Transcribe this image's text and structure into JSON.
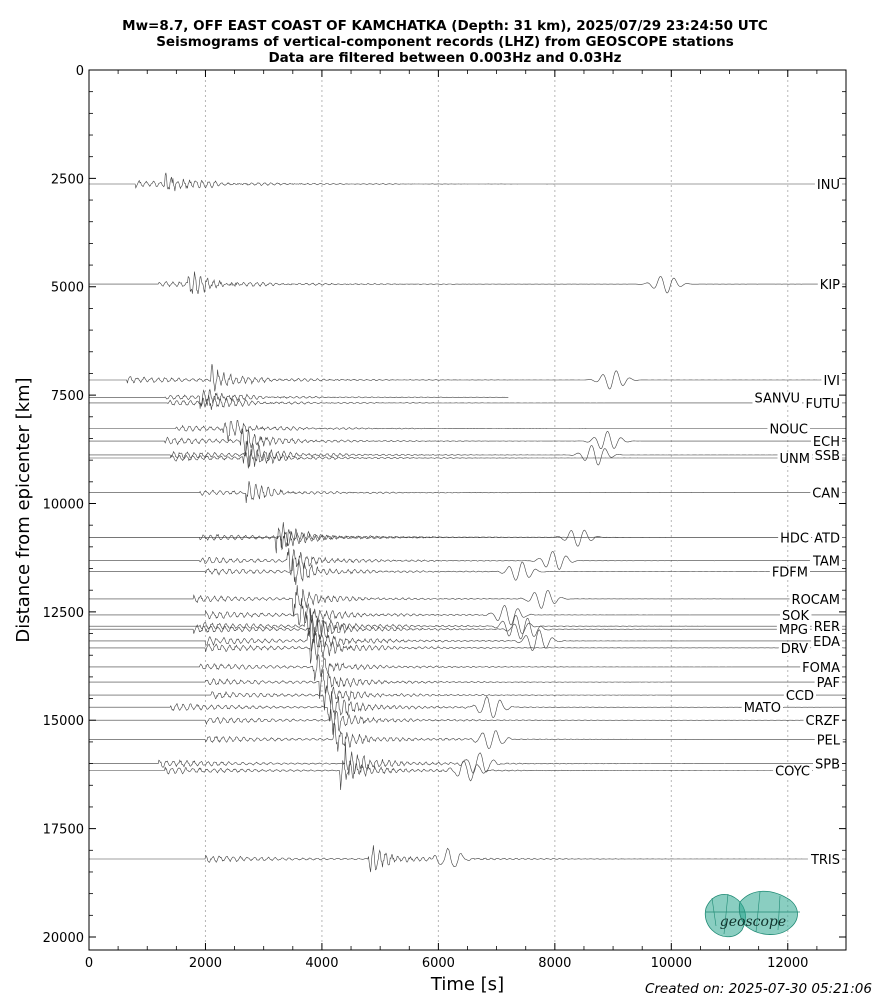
{
  "titles": {
    "line1": "Mw=8.7, OFF EAST COAST OF KAMCHATKA (Depth: 31 km), 2025/07/29 23:24:50 UTC",
    "line2": "Seismograms of vertical-component records (LHZ) from GEOSCOPE stations",
    "line3": "Data are filtered between 0.003Hz and 0.03Hz"
  },
  "created": "Created on: 2025-07-30 05:21:06",
  "logo_text": "geoscope",
  "colors": {
    "trace": "#404040",
    "grid": "#b8b8b8",
    "logo": "#2aa58e"
  },
  "chart_data": {
    "type": "seismogram-record-section",
    "xlabel": "Time [s]",
    "ylabel": "Distance from epicenter [km]",
    "xlim": [
      0,
      13000
    ],
    "ylim": [
      20300,
      0
    ],
    "x_ticks": [
      0,
      2000,
      4000,
      6000,
      8000,
      10000,
      12000
    ],
    "y_ticks": [
      0,
      2500,
      5000,
      7500,
      10000,
      12500,
      15000,
      17500,
      20000
    ],
    "grid": "vertical dotted at x ticks",
    "stations": [
      {
        "name": "INU",
        "dist": 2630,
        "t_p": 800,
        "t_s": 1300,
        "t_r": 0,
        "amp": 1.2,
        "label_side": "right"
      },
      {
        "name": "KIP",
        "dist": 4940,
        "t_p": 1200,
        "t_s": 1700,
        "t_r": 9900,
        "amp": 1.2,
        "label_side": "right"
      },
      {
        "name": "IVI",
        "dist": 7150,
        "t_p": 650,
        "t_s": 2100,
        "t_r": 9000,
        "amp": 1.3,
        "label_side": "right"
      },
      {
        "name": "SANVU",
        "dist": 7550,
        "t_p": 1300,
        "t_s": 1900,
        "t_r": 0,
        "amp": 1.0,
        "label_side": "left",
        "t_end": 7200
      },
      {
        "name": "FUTU",
        "dist": 7680,
        "t_p": 1350,
        "t_s": 1950,
        "t_r": 0,
        "amp": 1.0,
        "label_side": "right"
      },
      {
        "name": "NOUC",
        "dist": 8270,
        "t_p": 1500,
        "t_s": 2300,
        "t_r": 0,
        "amp": 1.1,
        "label_side": "left"
      },
      {
        "name": "ECH",
        "dist": 8560,
        "t_p": 1300,
        "t_s": 2600,
        "t_r": 8900,
        "amp": 1.3,
        "label_side": "right"
      },
      {
        "name": "SSB",
        "dist": 8880,
        "t_p": 1400,
        "t_s": 2700,
        "t_r": 8700,
        "amp": 1.4,
        "label_side": "right"
      },
      {
        "name": "UNM",
        "dist": 8950,
        "t_p": 1400,
        "t_s": 2650,
        "t_r": 0,
        "amp": 1.2,
        "label_side": "left"
      },
      {
        "name": "CAN",
        "dist": 9750,
        "t_p": 1900,
        "t_s": 2700,
        "t_r": 0,
        "amp": 1.0,
        "label_side": "right"
      },
      {
        "name": "HDC",
        "dist": 10780,
        "t_p": 0,
        "t_s": 3200,
        "t_r": 8400,
        "amp": 1.2,
        "label_side": "left"
      },
      {
        "name": "ATD",
        "dist": 10780,
        "t_p": 1900,
        "t_s": 3300,
        "t_r": 0,
        "amp": 1.3,
        "label_side": "right"
      },
      {
        "name": "TAM",
        "dist": 11320,
        "t_p": 1900,
        "t_s": 3400,
        "t_r": 8000,
        "amp": 1.3,
        "label_side": "right"
      },
      {
        "name": "FDFM",
        "dist": 11570,
        "t_p": 2000,
        "t_s": 3500,
        "t_r": 7400,
        "amp": 1.3,
        "label_side": "left"
      },
      {
        "name": "ROCAM",
        "dist": 12200,
        "t_p": 1800,
        "t_s": 3500,
        "t_r": 7800,
        "amp": 1.3,
        "label_side": "right"
      },
      {
        "name": "SOK",
        "dist": 12570,
        "t_p": 2000,
        "t_s": 3600,
        "t_r": 7200,
        "amp": 1.4,
        "label_side": "left"
      },
      {
        "name": "RER",
        "dist": 12830,
        "t_p": 1900,
        "t_s": 3700,
        "t_r": 7300,
        "amp": 1.5,
        "label_side": "right"
      },
      {
        "name": "MPG",
        "dist": 12900,
        "t_p": 1800,
        "t_s": 3800,
        "t_r": 7500,
        "amp": 1.5,
        "label_side": "left"
      },
      {
        "name": "EDA",
        "dist": 13170,
        "t_p": 2000,
        "t_s": 3750,
        "t_r": 7700,
        "amp": 1.5,
        "label_side": "right"
      },
      {
        "name": "DRV",
        "dist": 13330,
        "t_p": 2000,
        "t_s": 3800,
        "t_r": 0,
        "amp": 1.5,
        "label_side": "left"
      },
      {
        "name": "FOMA",
        "dist": 13770,
        "t_p": 1900,
        "t_s": 3850,
        "t_r": 0,
        "amp": 1.3,
        "label_side": "right"
      },
      {
        "name": "PAF",
        "dist": 14120,
        "t_p": 2000,
        "t_s": 3950,
        "t_r": 0,
        "amp": 1.3,
        "label_side": "right"
      },
      {
        "name": "CCD",
        "dist": 14420,
        "t_p": 2100,
        "t_s": 4000,
        "t_r": 0,
        "amp": 1.3,
        "label_side": "left"
      },
      {
        "name": "MATO",
        "dist": 14700,
        "t_p": 1400,
        "t_s": 4100,
        "t_r": 6900,
        "amp": 1.5,
        "label_side": "left"
      },
      {
        "name": "CRZF",
        "dist": 15000,
        "t_p": 2000,
        "t_s": 4150,
        "t_r": 0,
        "amp": 1.3,
        "label_side": "right"
      },
      {
        "name": "PEL",
        "dist": 15440,
        "t_p": 2000,
        "t_s": 4200,
        "t_r": 6900,
        "amp": 1.3,
        "label_side": "right"
      },
      {
        "name": "SPB",
        "dist": 16000,
        "t_p": 1200,
        "t_s": 4400,
        "t_r": 6700,
        "amp": 1.5,
        "label_side": "right"
      },
      {
        "name": "COYC",
        "dist": 16160,
        "t_p": 1300,
        "t_s": 4300,
        "t_r": 6500,
        "amp": 1.4,
        "label_side": "left"
      },
      {
        "name": "TRIS",
        "dist": 18200,
        "t_p": 2000,
        "t_s": 4800,
        "t_r": 6200,
        "amp": 1.3,
        "label_side": "right"
      }
    ]
  }
}
